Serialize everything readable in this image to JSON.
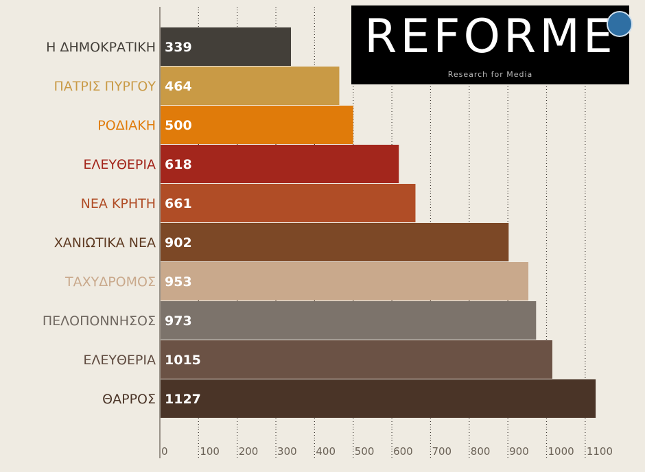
{
  "logo": {
    "title": "REFORME",
    "subtitle": "Research for Media"
  },
  "icons": {
    "corner": "hand-icon"
  },
  "chart_data": {
    "type": "bar",
    "orientation": "horizontal",
    "categories": [
      "Η ΔΗΜΟΚΡΑΤΙΚΗ",
      "ΠΑΤΡΙΣ ΠΥΡΓΟΥ",
      "ΡΟΔΙΑΚΗ",
      "ΕΛΕΥΘΕΡΙΑ",
      "ΝΕΑ ΚΡΗΤΗ",
      "ΧΑΝΙΩΤΙΚΑ ΝΕΑ",
      "ΤΑΧΥΔΡΟΜΟΣ",
      "ΠΕΛΟΠΟΝΝΗΣΟΣ",
      "ΕΛΕΥΘΕΡΙΑ",
      "ΘΑΡΡΟΣ"
    ],
    "values": [
      339,
      464,
      500,
      618,
      661,
      902,
      953,
      973,
      1015,
      1127
    ],
    "bar_colors": [
      "#433f39",
      "#c99a45",
      "#e07b0a",
      "#a3261c",
      "#b04d26",
      "#7c4826",
      "#c9a98c",
      "#7c736b",
      "#6b5245",
      "#4a3427"
    ],
    "label_colors": [
      "#433f39",
      "#c99a45",
      "#e07b0a",
      "#a3261c",
      "#b04d26",
      "#5e3a22",
      "#c9a98c",
      "#6f6760",
      "#5e4a3f",
      "#4a3427"
    ],
    "xticks": [
      0,
      100,
      200,
      300,
      400,
      500,
      600,
      700,
      800,
      900,
      1000,
      1100
    ],
    "xlim": [
      0,
      1150
    ],
    "grid": true,
    "title": "",
    "xlabel": "",
    "ylabel": ""
  }
}
